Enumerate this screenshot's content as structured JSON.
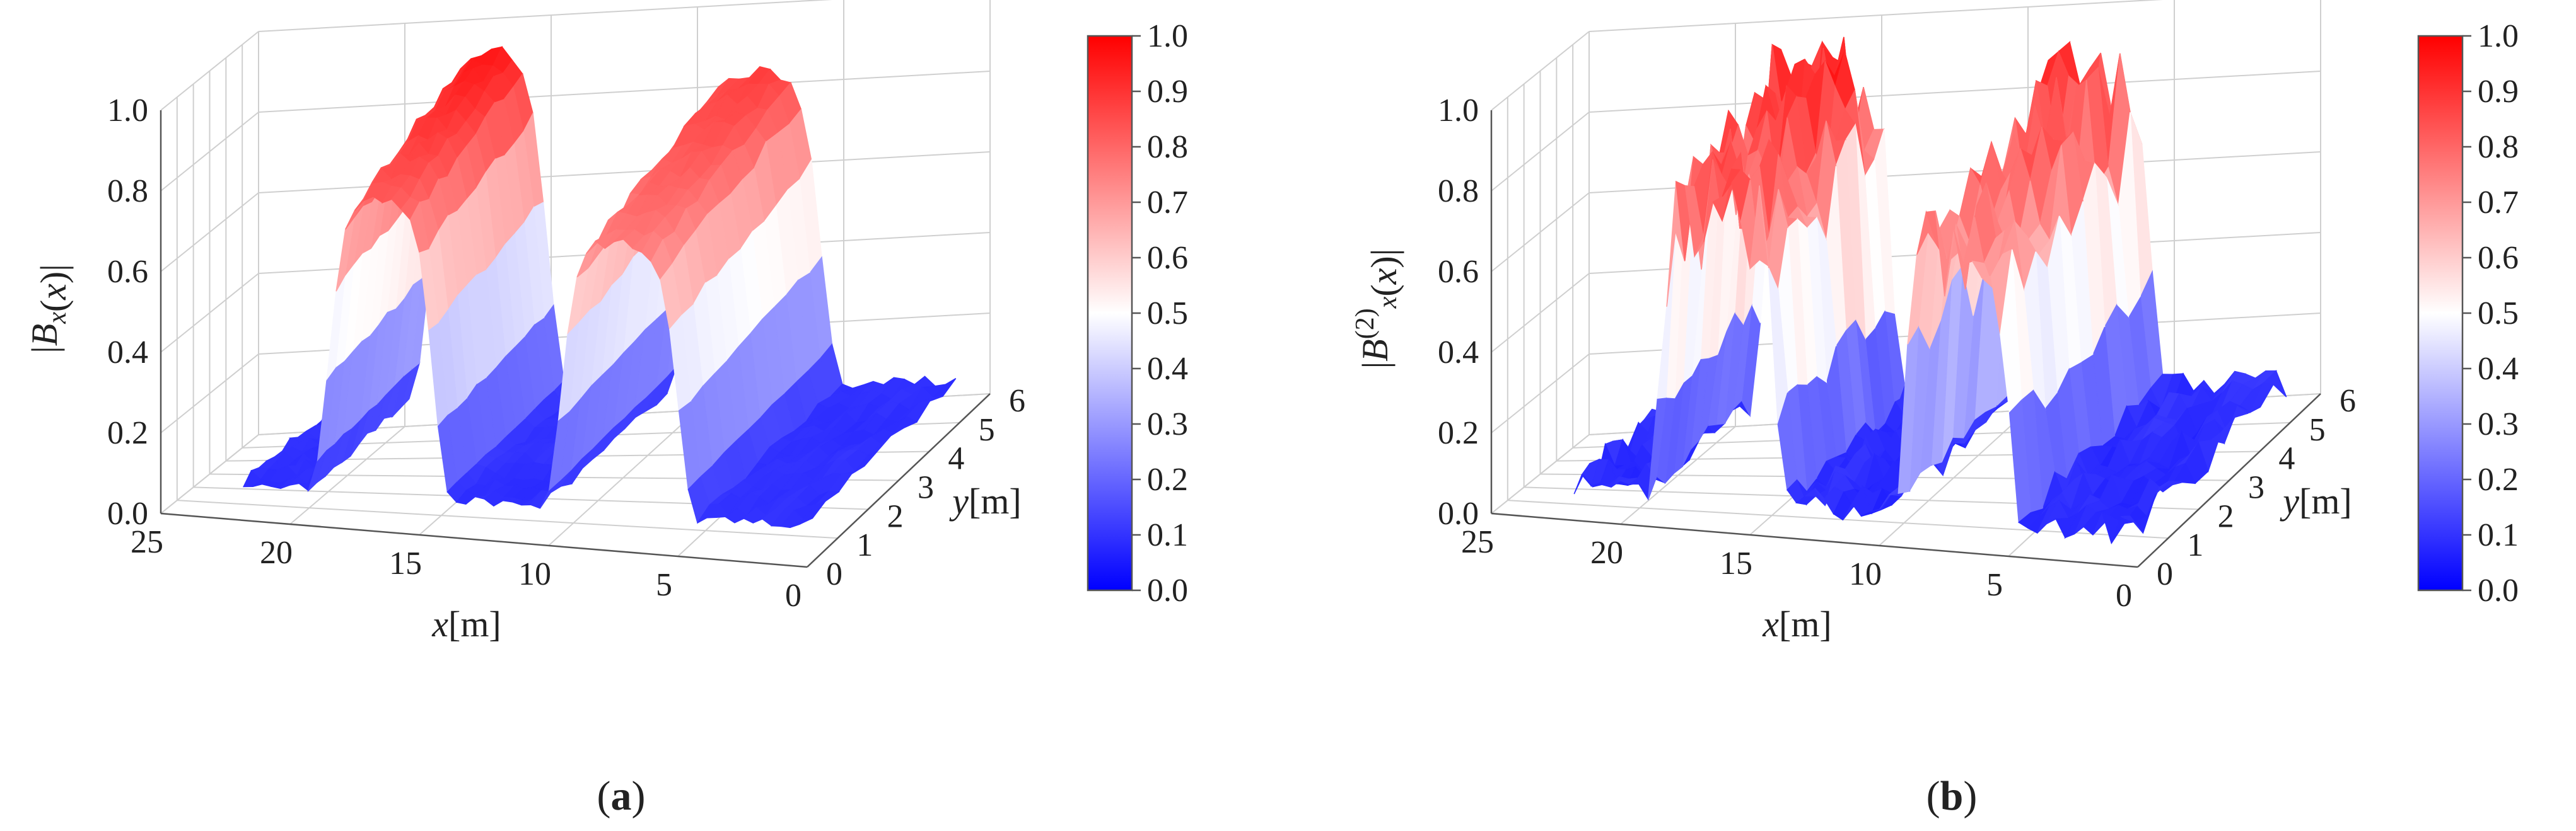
{
  "chart_data": [
    {
      "type": "surface3d",
      "panel_label": "a",
      "zlabel_html": "|B_x(x)|",
      "zlabel": {
        "pre": "|",
        "main": "B",
        "sup": "",
        "sub": "x",
        "post": "(x)|"
      },
      "xlabel": {
        "var": "x",
        "unit": "[m]"
      },
      "ylabel": {
        "var": "y",
        "unit": "[m]"
      },
      "xlim": [
        0,
        25
      ],
      "ylim": [
        0,
        6
      ],
      "zlim": [
        0,
        1
      ],
      "x_ticks": [
        "25",
        "20",
        "15",
        "10",
        "5",
        "0"
      ],
      "y_ticks": [
        "0",
        "1",
        "2",
        "3",
        "4",
        "5",
        "6"
      ],
      "z_ticks": [
        "0.0",
        "0.2",
        "0.4",
        "0.6",
        "0.8",
        "1.0"
      ],
      "colorbar_ticks": [
        "0.0",
        "0.1",
        "0.2",
        "0.3",
        "0.4",
        "0.5",
        "0.6",
        "0.7",
        "0.8",
        "0.9",
        "1.0"
      ],
      "colormap": [
        "#0000ff",
        "#ffffff",
        "#ff0000"
      ],
      "grid": true,
      "features": [
        {
          "x_range": [
            14.5,
            18.5
          ],
          "peak": 1.0,
          "shape": "smooth-plateau"
        },
        {
          "x_range": [
            5,
            9.5
          ],
          "peak": 0.92,
          "shape": "smooth-plateau"
        }
      ],
      "baseline": 0.08
    },
    {
      "type": "surface3d",
      "panel_label": "b",
      "zlabel": {
        "pre": "|",
        "main": "B",
        "sup": "(2)",
        "sub": "x",
        "post": "(x)|"
      },
      "xlabel": {
        "var": "x",
        "unit": "[m]"
      },
      "ylabel": {
        "var": "y",
        "unit": "[m]"
      },
      "xlim": [
        0,
        25
      ],
      "ylim": [
        0,
        6
      ],
      "zlim": [
        0,
        1
      ],
      "x_ticks": [
        "25",
        "20",
        "15",
        "10",
        "5",
        "0"
      ],
      "y_ticks": [
        "0",
        "1",
        "2",
        "3",
        "4",
        "5",
        "6"
      ],
      "z_ticks": [
        "0.0",
        "0.2",
        "0.4",
        "0.6",
        "0.8",
        "1.0"
      ],
      "colorbar_ticks": [
        "0.0",
        "0.1",
        "0.2",
        "0.3",
        "0.4",
        "0.5",
        "0.6",
        "0.7",
        "0.8",
        "0.9",
        "1.0"
      ],
      "colormap": [
        "#0000ff",
        "#ffffff",
        "#ff0000"
      ],
      "grid": true,
      "features": [
        {
          "x_range": [
            14,
            18.5
          ],
          "peak": 1.0,
          "shape": "noisy-plateau"
        },
        {
          "x_range": [
            5,
            9
          ],
          "peak": 0.95,
          "shape": "noisy-plateau"
        }
      ],
      "baseline": 0.05
    }
  ]
}
